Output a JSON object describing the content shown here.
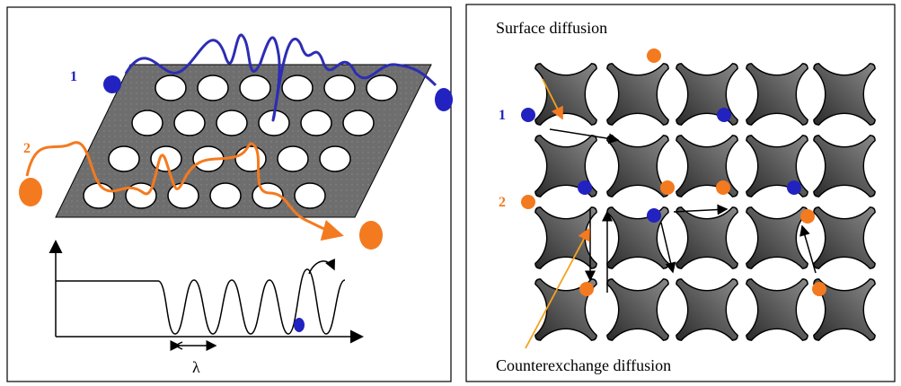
{
  "left_panel": {
    "particle_1": "1",
    "particle_2": "2",
    "wavelength": "λ"
  },
  "right_panel": {
    "title": "Surface diffusion",
    "particle_1": "1",
    "particle_2": "2",
    "caption": "Counterexchange diffusion"
  }
}
